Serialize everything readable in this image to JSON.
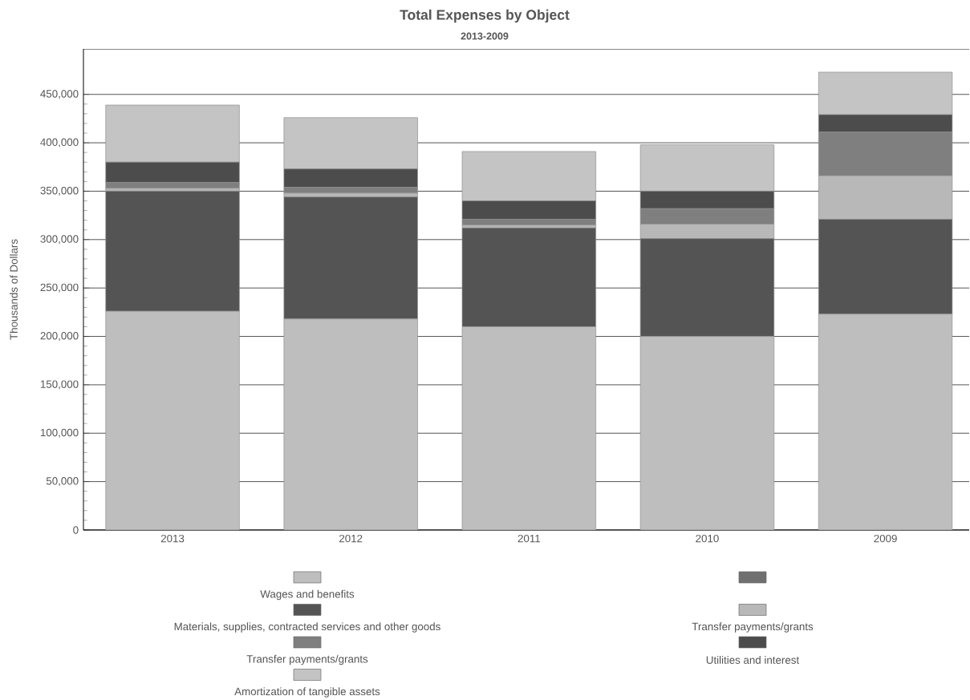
{
  "chart_data": {
    "type": "bar",
    "stacked": true,
    "title": "Total Expenses by Object",
    "subtitle": "2013-2009",
    "ylabel": "Thousands of Dollars",
    "categories": [
      "2013",
      "2012",
      "2011",
      "2010",
      "2009"
    ],
    "series": [
      {
        "name": "Wages and benefits",
        "color": "#bebebe",
        "values": [
          226000,
          218000,
          210000,
          200000,
          223000
        ]
      },
      {
        "color": "#707070",
        "values": [
          0,
          0,
          0,
          0,
          0
        ]
      },
      {
        "name": "Materials, supplies, contracted services and other goods",
        "color": "#545454",
        "values": [
          124000,
          126000,
          102000,
          101000,
          98000
        ]
      },
      {
        "name": "Transfer payments/grants",
        "color": "#b8b8b8",
        "values": [
          3000,
          4000,
          3000,
          15000,
          45000
        ]
      },
      {
        "name": "Transfer payments/grants",
        "color": "#7f7f7f",
        "values": [
          6000,
          6000,
          6000,
          16000,
          45000
        ]
      },
      {
        "name": "Utilities and interest",
        "color": "#4c4c4c",
        "values": [
          21000,
          19000,
          19000,
          18000,
          18000
        ]
      },
      {
        "name": "Amortization of tangible assets",
        "color": "#c4c4c4",
        "values": [
          59000,
          53000,
          51000,
          48000,
          44000
        ]
      }
    ],
    "ylim": [
      0,
      497000
    ],
    "yticks": [
      {
        "value": 0,
        "label": "0"
      },
      {
        "value": 50000,
        "label": "50,000"
      },
      {
        "value": 100000,
        "label": "100,000"
      },
      {
        "value": 150000,
        "label": "150,000"
      },
      {
        "value": 200000,
        "label": "200,000"
      },
      {
        "value": 250000,
        "label": "250,000"
      },
      {
        "value": 300000,
        "label": "300,000"
      },
      {
        "value": 350000,
        "label": "350,000"
      },
      {
        "value": 400000,
        "label": "400,000"
      },
      {
        "value": 450000,
        "label": "450,000"
      }
    ],
    "grid": "y",
    "legend": "bottom"
  }
}
